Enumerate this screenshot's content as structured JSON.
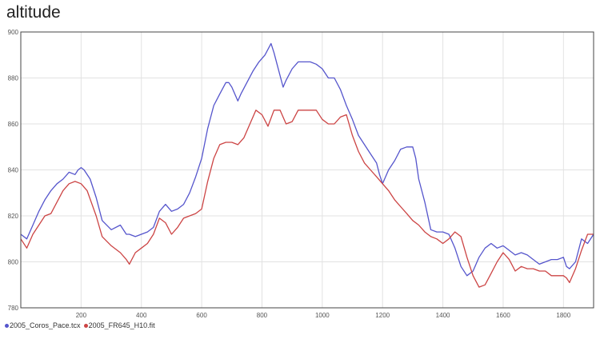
{
  "chart_data": {
    "type": "line",
    "title": "altitude",
    "xlabel": "",
    "ylabel": "",
    "xlim": [
      0,
      1900
    ],
    "ylim": [
      780,
      900
    ],
    "xticks": [
      200,
      400,
      600,
      800,
      1000,
      1200,
      1400,
      1600,
      1800
    ],
    "yticks": [
      780,
      800,
      820,
      840,
      860,
      880,
      900
    ],
    "grid": true,
    "legend_position": "bottom-left",
    "series": [
      {
        "name": "2005_Coros_Pace.tcx",
        "color": "#5555cc",
        "x": [
          0,
          20,
          40,
          60,
          80,
          100,
          120,
          140,
          160,
          180,
          190,
          200,
          210,
          230,
          250,
          270,
          300,
          330,
          350,
          360,
          380,
          400,
          420,
          440,
          460,
          480,
          500,
          520,
          540,
          560,
          580,
          600,
          620,
          640,
          660,
          680,
          690,
          700,
          720,
          730,
          750,
          770,
          790,
          810,
          830,
          840,
          850,
          870,
          880,
          900,
          920,
          940,
          960,
          980,
          1000,
          1020,
          1040,
          1060,
          1080,
          1100,
          1120,
          1140,
          1160,
          1180,
          1190,
          1200,
          1220,
          1240,
          1260,
          1280,
          1300,
          1310,
          1320,
          1340,
          1360,
          1380,
          1400,
          1420,
          1440,
          1460,
          1480,
          1500,
          1520,
          1540,
          1560,
          1580,
          1600,
          1620,
          1640,
          1660,
          1680,
          1700,
          1720,
          1740,
          1760,
          1780,
          1800,
          1810,
          1820,
          1840,
          1860,
          1880,
          1900
        ],
        "y": [
          812,
          810,
          816,
          822,
          827,
          831,
          834,
          836,
          839,
          838,
          840,
          841,
          840,
          836,
          828,
          818,
          814,
          816,
          812,
          812,
          811,
          812,
          813,
          815,
          822,
          825,
          822,
          823,
          825,
          830,
          837,
          845,
          858,
          868,
          873,
          878,
          878,
          876,
          870,
          873,
          878,
          883,
          887,
          890,
          895,
          891,
          886,
          876,
          879,
          884,
          887,
          887,
          887,
          886,
          884,
          880,
          880,
          875,
          868,
          862,
          855,
          851,
          847,
          843,
          838,
          834,
          840,
          844,
          849,
          850,
          850,
          845,
          836,
          826,
          814,
          813,
          813,
          812,
          806,
          798,
          794,
          796,
          802,
          806,
          808,
          806,
          807,
          805,
          803,
          804,
          803,
          801,
          799,
          800,
          801,
          801,
          802,
          798,
          797,
          800,
          810,
          808,
          812
        ]
      },
      {
        "name": "2005_FR645_H10.fit",
        "color": "#cc4444",
        "x": [
          0,
          20,
          40,
          60,
          80,
          100,
          120,
          140,
          160,
          180,
          200,
          220,
          250,
          270,
          300,
          330,
          350,
          360,
          380,
          400,
          420,
          440,
          460,
          480,
          500,
          520,
          540,
          560,
          580,
          600,
          620,
          640,
          660,
          680,
          700,
          720,
          740,
          760,
          780,
          800,
          820,
          840,
          860,
          880,
          900,
          920,
          940,
          960,
          980,
          1000,
          1020,
          1040,
          1060,
          1080,
          1100,
          1120,
          1140,
          1160,
          1180,
          1200,
          1220,
          1240,
          1260,
          1280,
          1300,
          1320,
          1340,
          1360,
          1380,
          1400,
          1420,
          1440,
          1460,
          1480,
          1500,
          1520,
          1540,
          1560,
          1580,
          1600,
          1620,
          1640,
          1660,
          1680,
          1700,
          1720,
          1740,
          1760,
          1780,
          1800,
          1810,
          1820,
          1840,
          1860,
          1880,
          1900
        ],
        "y": [
          810,
          806,
          812,
          816,
          820,
          821,
          826,
          831,
          834,
          835,
          834,
          831,
          820,
          811,
          807,
          804,
          801,
          799,
          804,
          806,
          808,
          812,
          819,
          817,
          812,
          815,
          819,
          820,
          821,
          823,
          835,
          845,
          851,
          852,
          852,
          851,
          854,
          860,
          866,
          864,
          859,
          866,
          866,
          860,
          861,
          866,
          866,
          866,
          866,
          862,
          860,
          860,
          863,
          864,
          855,
          848,
          843,
          840,
          837,
          834,
          831,
          827,
          824,
          821,
          818,
          816,
          813,
          811,
          810,
          808,
          810,
          813,
          811,
          802,
          794,
          789,
          790,
          795,
          800,
          804,
          801,
          796,
          798,
          797,
          797,
          796,
          796,
          794,
          794,
          794,
          793,
          791,
          797,
          805,
          812,
          812
        ]
      }
    ]
  }
}
